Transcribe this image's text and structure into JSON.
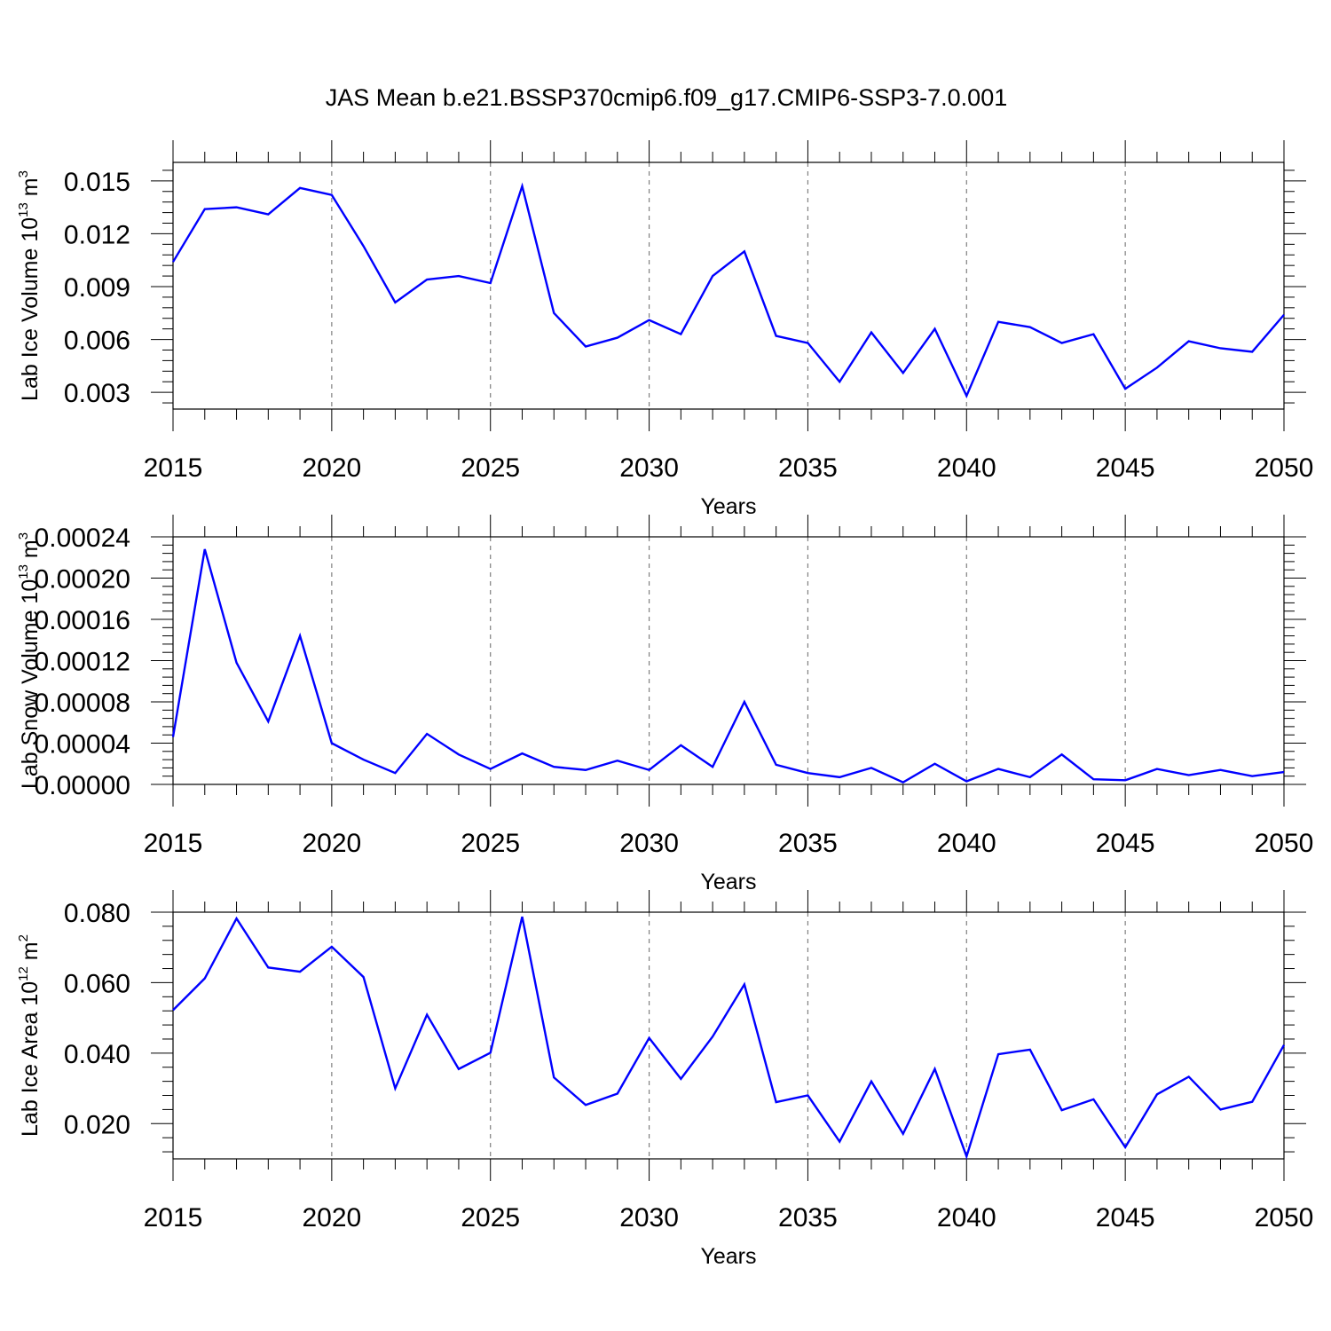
{
  "title": "JAS Mean b.e21.BSSP370cmip6.f09_g17.CMIP6-SSP3-7.0.001",
  "colors": {
    "series": "#0000ff",
    "axes": "#000000",
    "grid": "#7f7f7f"
  },
  "chart_data": [
    {
      "type": "line",
      "xlabel": "Years",
      "ylabel": {
        "text": "Lab Ice Volume 10",
        "exp": "13",
        "unit": " m",
        "unit_exp": "3"
      },
      "x": [
        2015,
        2016,
        2017,
        2018,
        2019,
        2020,
        2021,
        2022,
        2023,
        2024,
        2025,
        2026,
        2027,
        2028,
        2029,
        2030,
        2031,
        2032,
        2033,
        2034,
        2035,
        2036,
        2037,
        2038,
        2039,
        2040,
        2041,
        2042,
        2043,
        2044,
        2045,
        2046,
        2047,
        2048,
        2049,
        2050
      ],
      "series": [
        {
          "values": [
            0.0104,
            0.0134,
            0.0135,
            0.0131,
            0.0146,
            0.0142,
            0.0113,
            0.0081,
            0.0094,
            0.0096,
            0.0092,
            0.0147,
            0.0075,
            0.0056,
            0.0061,
            0.0071,
            0.0063,
            0.0096,
            0.011,
            0.0062,
            0.0058,
            0.0036,
            0.0064,
            0.0041,
            0.0066,
            0.0028,
            0.007,
            0.0067,
            0.0058,
            0.0063,
            0.0032,
            0.0044,
            0.0059,
            0.0055,
            0.0053,
            0.0074
          ]
        }
      ],
      "xlim": [
        2015,
        2050
      ],
      "ylim": [
        0.00205,
        0.01605
      ],
      "yticks": [
        0.003,
        0.006,
        0.009,
        0.012,
        0.015
      ],
      "ytick_labels": [
        "0.003",
        "0.006",
        "0.009",
        "0.012",
        "0.015"
      ],
      "xticks": [
        2015,
        2020,
        2025,
        2030,
        2035,
        2040,
        2045,
        2050
      ],
      "xtick_labels": [
        "2015",
        "2020",
        "2025",
        "2030",
        "2035",
        "2040",
        "2045",
        "2050"
      ],
      "grid": "dashed vertical lines at major x ticks"
    },
    {
      "type": "line",
      "xlabel": "Years",
      "ylabel": {
        "text": "Lab Snow Volume 10",
        "exp": "13",
        "unit": " m",
        "unit_exp": "3"
      },
      "x": [
        2015,
        2016,
        2017,
        2018,
        2019,
        2020,
        2021,
        2022,
        2023,
        2024,
        2025,
        2026,
        2027,
        2028,
        2029,
        2030,
        2031,
        2032,
        2033,
        2034,
        2035,
        2036,
        2037,
        2038,
        2039,
        2040,
        2041,
        2042,
        2043,
        2044,
        2045,
        2046,
        2047,
        2048,
        2049,
        2050
      ],
      "series": [
        {
          "values": [
            4.6e-05,
            0.000228,
            0.000118,
            6.1e-05,
            0.000144,
            4e-05,
            2.4e-05,
            1.1e-05,
            4.9e-05,
            2.9e-05,
            1.5e-05,
            3e-05,
            1.7e-05,
            1.4e-05,
            2.3e-05,
            1.4e-05,
            3.8e-05,
            1.7e-05,
            8e-05,
            1.9e-05,
            1.1e-05,
            7e-06,
            1.6e-05,
            2e-06,
            2e-05,
            3e-06,
            1.5e-05,
            7e-06,
            2.9e-05,
            5e-06,
            4e-06,
            1.5e-05,
            9e-06,
            1.4e-05,
            8e-06,
            1.2e-05
          ]
        }
      ],
      "xlim": [
        2015,
        2050
      ],
      "ylim": [
        0,
        0.00024
      ],
      "yticks": [
        0,
        4e-05,
        8e-05,
        0.00012,
        0.00016,
        0.0002,
        0.00024
      ],
      "ytick_labels": [
        "0.00000",
        "0.00004",
        "0.00008",
        "0.00012",
        "0.00016",
        "0.00020",
        "0.00024"
      ],
      "xticks": [
        2015,
        2020,
        2025,
        2030,
        2035,
        2040,
        2045,
        2050
      ],
      "xtick_labels": [
        "2015",
        "2020",
        "2025",
        "2030",
        "2035",
        "2040",
        "2045",
        "2050"
      ],
      "grid": "dashed vertical lines at major x ticks"
    },
    {
      "type": "line",
      "xlabel": "Years",
      "ylabel": {
        "text": "Lab Ice Area 10",
        "exp": "12",
        "unit": " m",
        "unit_exp": "2"
      },
      "x": [
        2015,
        2016,
        2017,
        2018,
        2019,
        2020,
        2021,
        2022,
        2023,
        2024,
        2025,
        2026,
        2027,
        2028,
        2029,
        2030,
        2031,
        2032,
        2033,
        2034,
        2035,
        2036,
        2037,
        2038,
        2039,
        2040,
        2041,
        2042,
        2043,
        2044,
        2045,
        2046,
        2047,
        2048,
        2049,
        2050
      ],
      "series": [
        {
          "values": [
            0.0522,
            0.0612,
            0.0782,
            0.0643,
            0.0631,
            0.0702,
            0.0616,
            0.03,
            0.0509,
            0.0355,
            0.0401,
            0.0787,
            0.0331,
            0.0253,
            0.0285,
            0.0443,
            0.0327,
            0.0447,
            0.0595,
            0.0261,
            0.028,
            0.0149,
            0.032,
            0.0171,
            0.0355,
            0.0107,
            0.0397,
            0.041,
            0.0238,
            0.0269,
            0.0133,
            0.0283,
            0.0333,
            0.024,
            0.0262,
            0.0423
          ]
        }
      ],
      "xlim": [
        2015,
        2050
      ],
      "ylim": [
        0.01,
        0.08
      ],
      "yticks": [
        0.02,
        0.04,
        0.06,
        0.08
      ],
      "ytick_labels": [
        "0.020",
        "0.040",
        "0.060",
        "0.080"
      ],
      "xticks": [
        2015,
        2020,
        2025,
        2030,
        2035,
        2040,
        2045,
        2050
      ],
      "xtick_labels": [
        "2015",
        "2020",
        "2025",
        "2030",
        "2035",
        "2040",
        "2045",
        "2050"
      ],
      "grid": "dashed vertical lines at major x ticks"
    }
  ]
}
